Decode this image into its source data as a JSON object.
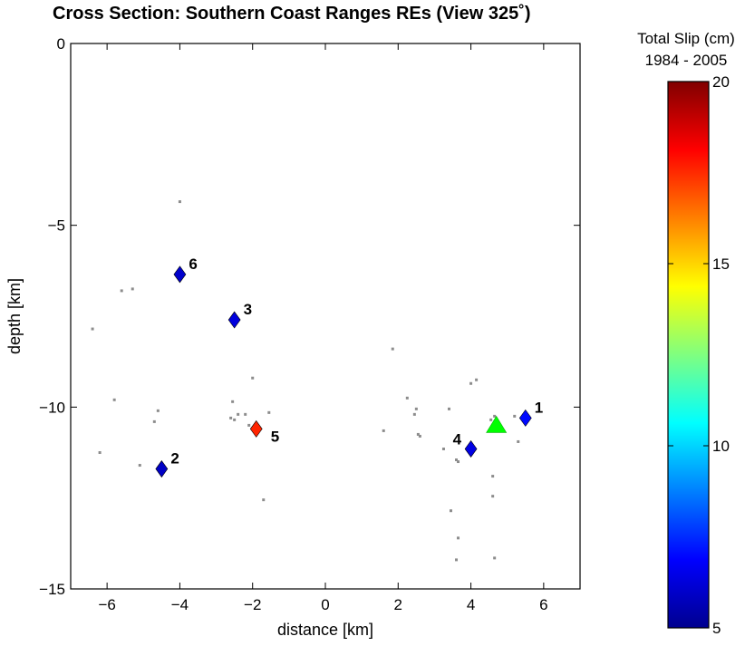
{
  "chart_data": {
    "type": "scatter",
    "title": "Cross Section: Southern Coast Ranges REs (View 325˚)",
    "xlabel": "distance [km]",
    "ylabel": "depth [km]",
    "xlim": [
      -7,
      7
    ],
    "ylim": [
      -15,
      0
    ],
    "xticks": [
      -6,
      -4,
      -2,
      0,
      2,
      4,
      6
    ],
    "yticks": [
      0,
      -5,
      -10,
      -15
    ],
    "xtick_labels": [
      "−6",
      "−4",
      "−2",
      "0",
      "2",
      "4",
      "6"
    ],
    "ytick_labels": [
      "0",
      "−5",
      "−10",
      "−15"
    ],
    "grid": false,
    "colorbar": {
      "title_line1": "Total Slip (cm)",
      "title_line2": "1984 - 2005",
      "range": [
        5,
        20
      ],
      "ticks": [
        5,
        10,
        15,
        20
      ],
      "tick_labels": [
        "5",
        "10",
        "15",
        "20"
      ],
      "colormap": "jet"
    },
    "background_events": [
      {
        "x": -4.0,
        "y": -4.35
      },
      {
        "x": -5.6,
        "y": -6.8
      },
      {
        "x": -5.3,
        "y": -6.75
      },
      {
        "x": -6.4,
        "y": -7.85
      },
      {
        "x": -5.8,
        "y": -9.8
      },
      {
        "x": -4.6,
        "y": -10.1
      },
      {
        "x": -4.7,
        "y": -10.4
      },
      {
        "x": -6.2,
        "y": -11.25
      },
      {
        "x": -5.1,
        "y": -11.6
      },
      {
        "x": -2.0,
        "y": -9.2
      },
      {
        "x": -2.55,
        "y": -9.85
      },
      {
        "x": -2.4,
        "y": -10.2
      },
      {
        "x": -2.2,
        "y": -10.2
      },
      {
        "x": -2.6,
        "y": -10.3
      },
      {
        "x": -2.5,
        "y": -10.35
      },
      {
        "x": -1.55,
        "y": -10.15
      },
      {
        "x": -2.1,
        "y": -10.5
      },
      {
        "x": -1.7,
        "y": -12.55
      },
      {
        "x": 1.85,
        "y": -8.4
      },
      {
        "x": 2.25,
        "y": -9.75
      },
      {
        "x": 2.45,
        "y": -10.2
      },
      {
        "x": 2.5,
        "y": -10.05
      },
      {
        "x": 1.6,
        "y": -10.65
      },
      {
        "x": 2.55,
        "y": -10.75
      },
      {
        "x": 2.6,
        "y": -10.8
      },
      {
        "x": 3.4,
        "y": -10.05
      },
      {
        "x": 3.25,
        "y": -11.15
      },
      {
        "x": 3.6,
        "y": -11.45
      },
      {
        "x": 3.65,
        "y": -11.5
      },
      {
        "x": 4.0,
        "y": -9.35
      },
      {
        "x": 4.15,
        "y": -9.25
      },
      {
        "x": 4.65,
        "y": -10.25
      },
      {
        "x": 4.55,
        "y": -10.35
      },
      {
        "x": 4.6,
        "y": -11.9
      },
      {
        "x": 4.6,
        "y": -12.45
      },
      {
        "x": 3.45,
        "y": -12.85
      },
      {
        "x": 3.65,
        "y": -13.6
      },
      {
        "x": 3.6,
        "y": -14.2
      },
      {
        "x": 4.65,
        "y": -14.15
      },
      {
        "x": 5.2,
        "y": -10.25
      },
      {
        "x": 5.3,
        "y": -10.95
      }
    ],
    "repeating_events": [
      {
        "label": "1",
        "x": 5.5,
        "y": -10.3,
        "slip": 7.0
      },
      {
        "label": "2",
        "x": -4.5,
        "y": -11.7,
        "slip": 5.9
      },
      {
        "label": "3",
        "x": -2.5,
        "y": -7.6,
        "slip": 6.3
      },
      {
        "label": "4",
        "x": 4.0,
        "y": -11.15,
        "slip": 6.4
      },
      {
        "label": "5",
        "x": -1.9,
        "y": -10.6,
        "slip": 17.6
      },
      {
        "label": "6",
        "x": -4.0,
        "y": -6.35,
        "slip": 6.0
      }
    ],
    "station": {
      "x": 4.7,
      "y": -10.5,
      "color": "#00ff00"
    },
    "colors": {
      "background_event": "#8c8c8c",
      "axes": "#000000"
    }
  }
}
